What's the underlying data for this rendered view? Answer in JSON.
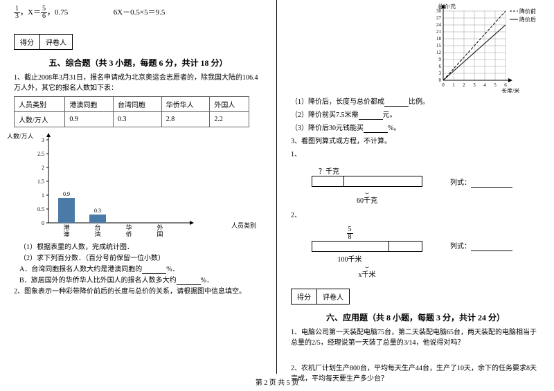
{
  "left": {
    "eq1_frac1_num": "1",
    "eq1_frac1_den": "3",
    "eq1_mid": "，X＝",
    "eq1_frac2_num": "5",
    "eq1_frac2_den": "6",
    "eq1_tail": "，0.75",
    "eq2": "6X－0.5×5＝9.5",
    "scorebox_a": "得分",
    "scorebox_b": "评卷人",
    "section5_title": "五、综合题（共 3 小题，每题 6 分，共计 18 分）",
    "q1_text": "1、截止2008年3月31日，报名申请成为北京奥运会志愿者的，除我国大陆的106.4万人外，其它的报名人数如下表：",
    "table": {
      "h1": "人员类别",
      "h2": "港澳同胞",
      "h3": "台湾同胞",
      "h4": "华侨华人",
      "h5": "外国人",
      "r1": "人数/万人",
      "v2": "0.9",
      "v3": "0.3",
      "v4": "2.8",
      "v5": "2.2"
    },
    "bar_chart": {
      "y_label": "人数/万人",
      "x_label": "人员类别",
      "y_max": 3,
      "y_step": 0.5,
      "yticks": [
        "3",
        "2.5",
        "2",
        "1.5",
        "1",
        "0.5",
        "0"
      ],
      "categories": [
        "港澳同胞",
        "台湾同胞",
        "华侨华人",
        "外国人"
      ],
      "values": [
        0.9,
        0.3,
        null,
        null
      ],
      "bar_labels": [
        "0.9",
        "0.3",
        "",
        ""
      ],
      "bar_color": "#4a7ba6",
      "axis_color": "#000000",
      "grid": false
    },
    "sub1": "（1）根据表里的人数，完成统计图．",
    "sub2": "（2）求下列百分数．（百分号前保留一位小数）",
    "sub2a": "A．台湾同胞报名人数大约是港澳同胞的",
    "sub2a_tail": "%．",
    "sub2b": "B．旅居国外的华侨华人比外国人的报名人数多大约",
    "sub2b_tail": "%．",
    "q2_text": "2、图象表示一种彩带降价前后的长度与总价的关系，请根据图中信息填空。"
  },
  "right": {
    "line_chart": {
      "y_label": "总价/元",
      "x_label": "长度/米",
      "legend_before": "降价前",
      "legend_after": "降价后",
      "x_max": 6,
      "y_max": 30,
      "xticks": [
        "0",
        "1",
        "2",
        "3",
        "4",
        "5",
        "6"
      ],
      "yticks": [
        "0",
        "3",
        "6",
        "9",
        "12",
        "15",
        "18",
        "21",
        "24",
        "27",
        "30"
      ],
      "before_slope": 5,
      "after_slope": 4,
      "line_color": "#000000",
      "dash_before": "4 2",
      "dash_after": "none",
      "grid_color": "#999999"
    },
    "r1": "（1）降价后，长度与总价都成",
    "r1_tail": "比例。",
    "r2": "（2）降价前买7.5米需",
    "r2_tail": "元。",
    "r3": "（3）降价后30元钱能买",
    "r3_tail": "%。",
    "q3_text": "3、看图列算式或方程，不计算。",
    "item1": "1、",
    "tape1_top": "？千克",
    "tape1_bottom": "60千克",
    "lieshi_label": "列式：",
    "item2": "2、",
    "tape2_top_num": "5",
    "tape2_top_den": "8",
    "tape2_mid": "100千米",
    "tape2_bottom": "x千米",
    "scorebox_a": "得分",
    "scorebox_b": "评卷人",
    "section6_title": "六、应用题（共 8 小题，每题 3 分，共计 24 分）",
    "q6_1": "1、电脑公司第一天装配电脑75台，第二天装配电脑65台，两天装配的电脑相当于总量的2/5，经理说第一天装了总量的3/14，他说得对吗？",
    "q6_2": "2、农机厂计划生产800台，平均每天生产44台，生产了10天，余下的任务要求8天完成，平均每天要生产多少台？"
  },
  "footer": "第 2 页 共 5 页"
}
